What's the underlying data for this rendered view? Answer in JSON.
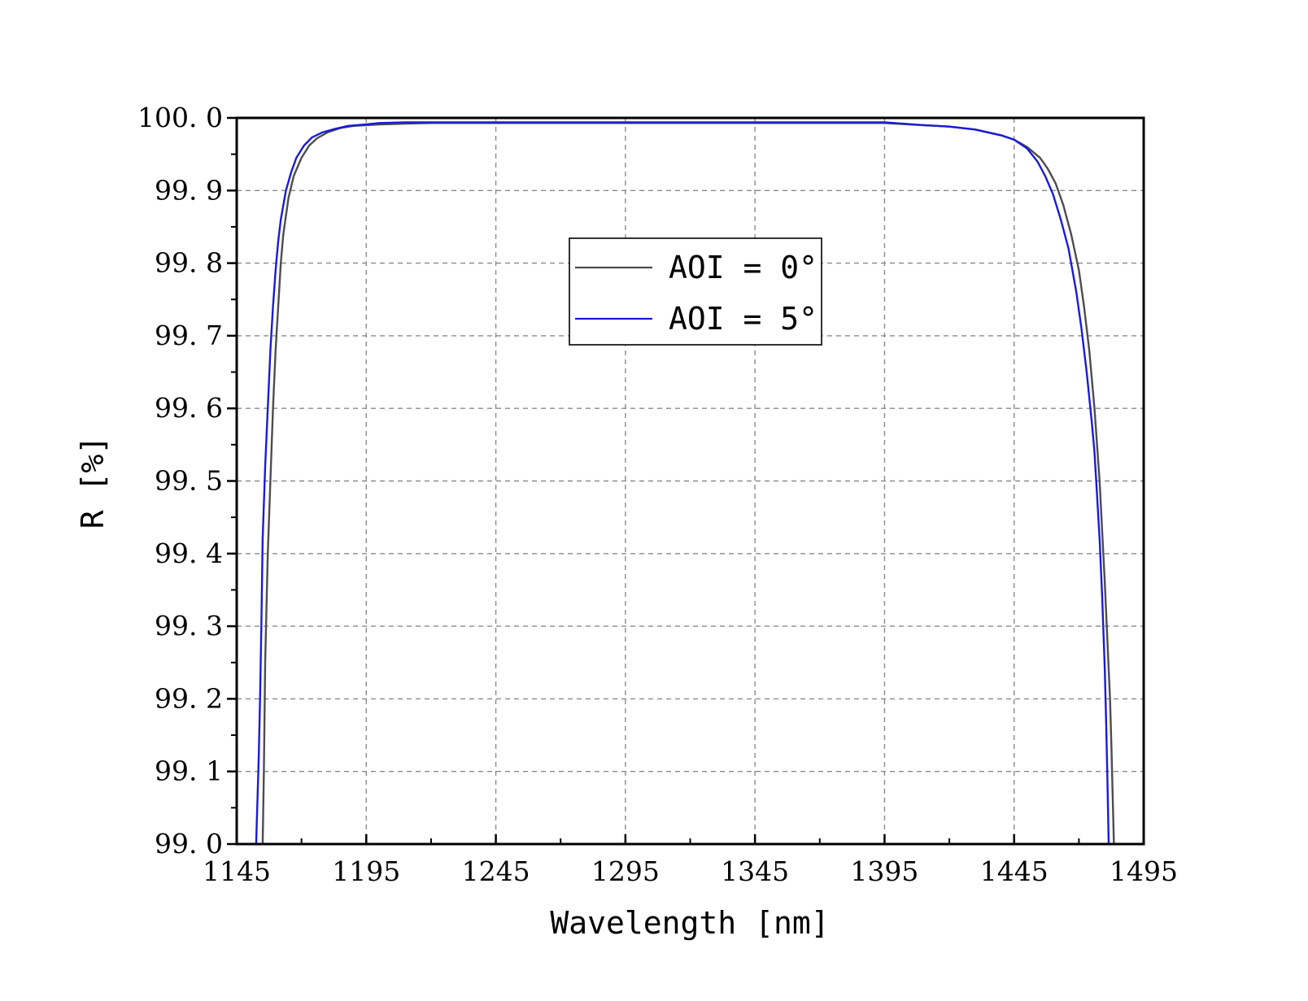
{
  "chart_data": {
    "type": "line",
    "xlabel": "Wavelength [nm]",
    "ylabel": "R [%]",
    "xlim": [
      1145,
      1495
    ],
    "ylim": [
      99.0,
      100.0
    ],
    "xticks": [
      1145,
      1195,
      1245,
      1295,
      1345,
      1395,
      1445,
      1495
    ],
    "xtick_labels": [
      "1145",
      "1195",
      "1245",
      "1295",
      "1345",
      "1395",
      "1445",
      "1495"
    ],
    "yticks": [
      99.0,
      99.1,
      99.2,
      99.3,
      99.4,
      99.5,
      99.6,
      99.7,
      99.8,
      99.9,
      100.0
    ],
    "ytick_labels": [
      "99. 0",
      "99. 1",
      "99. 2",
      "99. 3",
      "99. 4",
      "99. 5",
      "99. 6",
      "99. 7",
      "99. 8",
      "99. 9",
      "100. 0"
    ],
    "grid": true,
    "legend_position": "top-center",
    "series": [
      {
        "name": "AOI = 0°",
        "color": "#4d4d4d",
        "x": [
          1155,
          1155.5,
          1156,
          1157,
          1158,
          1159,
          1160,
          1161,
          1162,
          1163,
          1165,
          1167,
          1170,
          1173,
          1176,
          1180,
          1185,
          1190,
          1195,
          1200,
          1210,
          1220,
          1245,
          1295,
          1345,
          1395,
          1410,
          1420,
          1430,
          1440,
          1445,
          1450,
          1455,
          1458,
          1461,
          1464,
          1467,
          1470,
          1472,
          1474,
          1476,
          1478,
          1479,
          1480,
          1481,
          1482,
          1482.5,
          1483,
          1483.5
        ],
        "y": [
          99.0,
          99.1,
          99.25,
          99.4,
          99.5,
          99.6,
          99.68,
          99.74,
          99.8,
          99.84,
          99.89,
          99.92,
          99.945,
          99.962,
          99.972,
          99.98,
          99.986,
          99.989,
          99.99,
          99.991,
          99.992,
          99.993,
          99.993,
          99.993,
          99.993,
          99.993,
          99.99,
          99.988,
          99.984,
          99.976,
          99.97,
          99.96,
          99.945,
          99.93,
          99.91,
          99.88,
          99.84,
          99.79,
          99.74,
          99.68,
          99.6,
          99.5,
          99.43,
          99.36,
          99.28,
          99.2,
          99.14,
          99.07,
          99.0
        ]
      },
      {
        "name": "AOI = 5°",
        "color": "#1a1ad9",
        "x": [
          1152.5,
          1153,
          1153.5,
          1154,
          1154.5,
          1155,
          1156,
          1157,
          1158,
          1159,
          1160,
          1161,
          1162,
          1164,
          1166,
          1168,
          1171,
          1174,
          1178,
          1183,
          1188,
          1195,
          1200,
          1210,
          1220,
          1245,
          1295,
          1345,
          1395,
          1410,
          1420,
          1430,
          1440,
          1445,
          1450,
          1454,
          1457,
          1460,
          1463,
          1466,
          1469,
          1471,
          1473,
          1475,
          1476,
          1477,
          1478,
          1479,
          1480,
          1480.5,
          1481,
          1481.5
        ],
        "y": [
          99.0,
          99.06,
          99.12,
          99.2,
          99.3,
          99.42,
          99.52,
          99.6,
          99.68,
          99.74,
          99.79,
          99.83,
          99.86,
          99.9,
          99.925,
          99.945,
          99.962,
          99.973,
          99.98,
          99.985,
          99.989,
          99.991,
          99.993,
          99.994,
          99.994,
          99.994,
          99.994,
          99.994,
          99.994,
          99.99,
          99.988,
          99.984,
          99.976,
          99.97,
          99.958,
          99.94,
          99.92,
          99.895,
          99.86,
          99.82,
          99.76,
          99.71,
          99.65,
          99.58,
          99.54,
          99.48,
          99.42,
          99.34,
          99.24,
          99.17,
          99.09,
          99.0
        ]
      }
    ]
  }
}
